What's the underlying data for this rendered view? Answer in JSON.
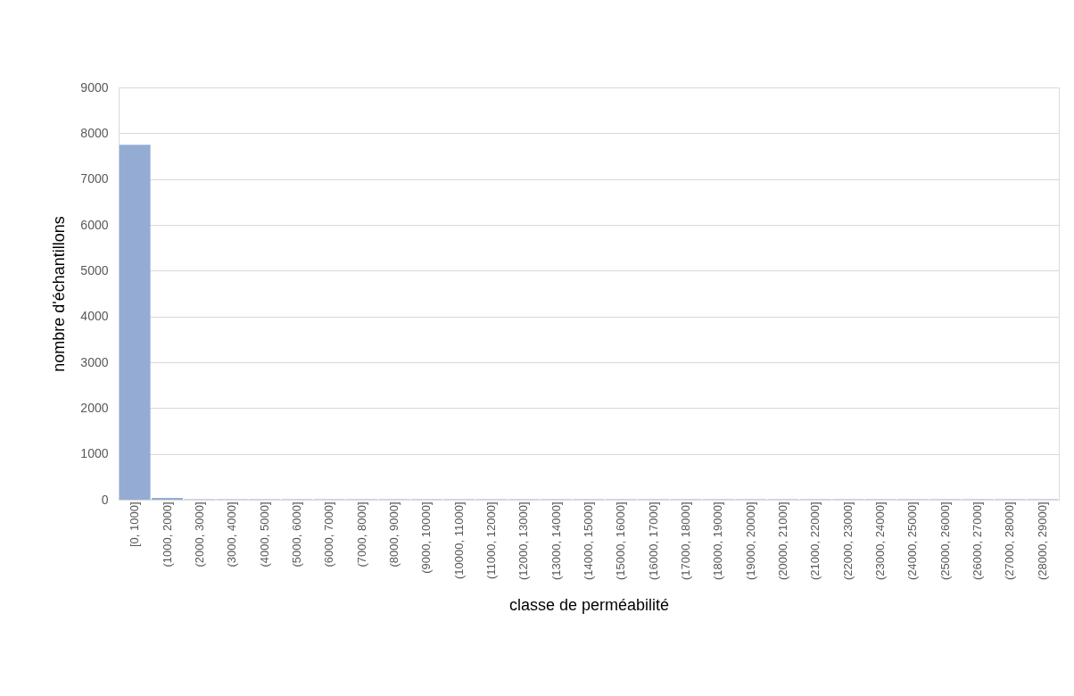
{
  "chart_data": {
    "type": "bar",
    "xlabel": "classe de perméabilité",
    "ylabel": "nombre d'échantillons",
    "categories": [
      "[0, 1000]",
      "(1000, 2000]",
      "(2000, 3000]",
      "(3000, 4000]",
      "(4000, 5000]",
      "(5000, 6000]",
      "(6000, 7000]",
      "(7000, 8000]",
      "(8000, 9000]",
      "(9000, 10000]",
      "(10000, 11000]",
      "(11000, 12000]",
      "(12000, 13000]",
      "(13000, 14000]",
      "(14000, 15000]",
      "(15000, 16000]",
      "(16000, 17000]",
      "(17000, 18000]",
      "(18000, 19000]",
      "(19000, 20000]",
      "(20000, 21000]",
      "(21000, 22000]",
      "(22000, 23000]",
      "(23000, 24000]",
      "(24000, 25000]",
      "(25000, 26000]",
      "(26000, 27000]",
      "(27000, 28000]",
      "(28000, 29000]"
    ],
    "values": [
      7750,
      40,
      10,
      10,
      10,
      10,
      10,
      10,
      10,
      10,
      10,
      10,
      10,
      10,
      10,
      10,
      10,
      10,
      10,
      10,
      10,
      10,
      10,
      10,
      10,
      10,
      10,
      10,
      10
    ],
    "color": "#94acd4",
    "ylim": [
      0,
      9000
    ],
    "yticks": [
      0,
      1000,
      2000,
      3000,
      4000,
      5000,
      6000,
      7000,
      8000,
      9000
    ],
    "grid": "y"
  }
}
